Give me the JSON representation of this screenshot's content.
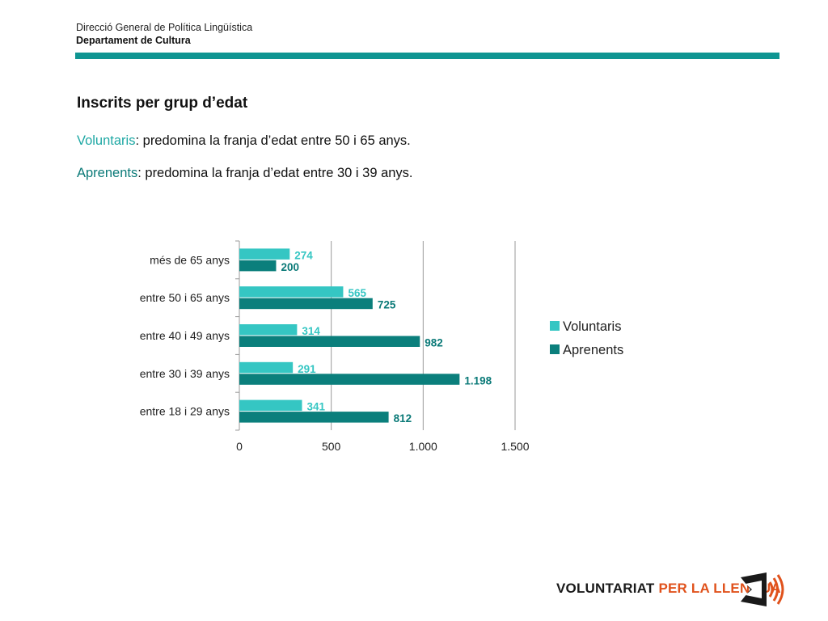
{
  "header": {
    "org_line1": "Direcció General de Política Lingüística",
    "org_line2": "Departament de Cultura"
  },
  "slide": {
    "title": "Inscrits per grup d’edat",
    "line1_key": "Voluntaris",
    "line1_rest": ": predomina la franja d’edat entre 50 i 65 anys.",
    "line2_key": "Aprenents",
    "line2_rest": ": predomina la franja d’edat entre 30 i 39 anys."
  },
  "colors": {
    "accent_bar": "#0f9592",
    "voluntaris": "#35c6c3",
    "aprenents": "#0b7f7c",
    "voluntaris_label": "#35c6c3",
    "aprenents_label": "#0b7a78",
    "logo_orange": "#e0521c"
  },
  "logo": {
    "text_a": "VOLUNTARIAT ",
    "text_b": "PER LA LLENGUA",
    "icon": "megaphone-icon"
  },
  "chart_data": {
    "type": "bar",
    "orientation": "horizontal",
    "categories": [
      "entre 18 i 29 anys",
      "entre 30 i 39 anys",
      "entre 40 i 49 anys",
      "entre 50 i 65 anys",
      "més de 65 anys"
    ],
    "series": [
      {
        "name": "Voluntaris",
        "values": [
          341,
          291,
          314,
          565,
          274
        ],
        "labels": [
          "341",
          "291",
          "314",
          "565",
          "274"
        ]
      },
      {
        "name": "Aprenents",
        "values": [
          812,
          1198,
          982,
          725,
          200
        ],
        "labels": [
          "812",
          "1.198",
          "982",
          "725",
          "200"
        ]
      }
    ],
    "xlim": [
      0,
      1500
    ],
    "xticks": [
      0,
      500,
      1000,
      1500
    ],
    "xtick_labels": [
      "0",
      "500",
      "1.000",
      "1.500"
    ],
    "grid": true,
    "legend_position": "right"
  }
}
